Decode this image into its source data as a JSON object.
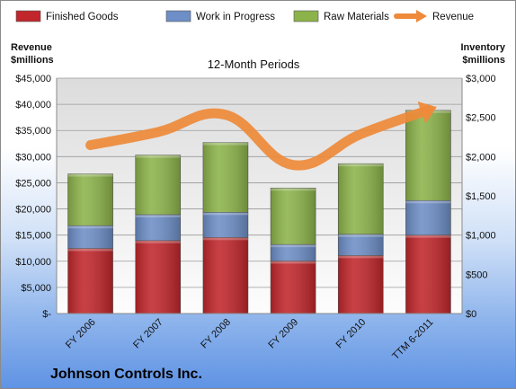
{
  "chart_data": {
    "type": "bar",
    "title": "12-Month Periods",
    "company": "Johnson Controls Inc.",
    "categories": [
      "FY 2006",
      "FY 2007",
      "FY 2008",
      "FY 2009",
      "FY 2010",
      "TTM 6-2011"
    ],
    "left_axis": {
      "title_line1": "Revenue",
      "title_line2": "$millions",
      "range": [
        0,
        45000
      ],
      "ticks": [
        "$-",
        "$5,000",
        "$10,000",
        "$15,000",
        "$20,000",
        "$25,000",
        "$30,000",
        "$35,000",
        "$40,000",
        "$45,000"
      ]
    },
    "right_axis": {
      "title_line1": "Inventory",
      "title_line2": "$millions",
      "range": [
        0,
        3000
      ],
      "ticks": [
        "$0",
        "$500",
        "$1,000",
        "$1,500",
        "$2,000",
        "$2,500",
        "$3,000"
      ]
    },
    "stack_axis": "right",
    "series": [
      {
        "name": "Finished Goods",
        "kind": "stacked-bar",
        "color": "#c0262b",
        "values": [
          830,
          930,
          970,
          670,
          740,
          1000
        ]
      },
      {
        "name": "Work in Progress",
        "kind": "stacked-bar",
        "color": "#6d8ec6",
        "values": [
          290,
          330,
          320,
          210,
          270,
          440
        ]
      },
      {
        "name": "Raw Materials",
        "kind": "stacked-bar",
        "color": "#8cb34a",
        "values": [
          660,
          760,
          890,
          720,
          900,
          1150
        ]
      },
      {
        "name": "Revenue",
        "kind": "line",
        "axis": "left",
        "color": "#ee8a3a",
        "values": [
          32200,
          34700,
          38000,
          28400,
          34300,
          38900
        ]
      }
    ],
    "grid": true,
    "legend": "top"
  }
}
